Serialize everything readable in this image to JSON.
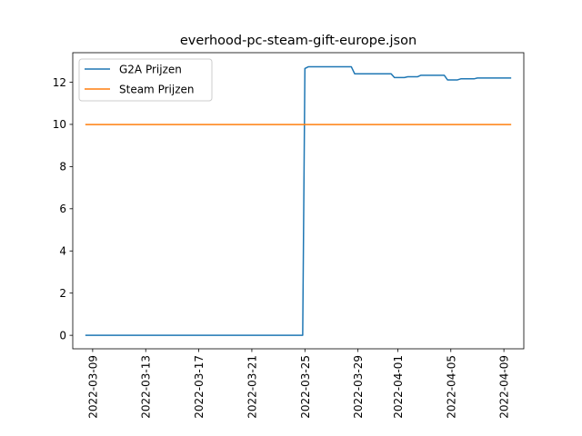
{
  "chart_data": {
    "type": "line",
    "title": "everhood-pc-steam-gift-europe.json",
    "xlabel": "",
    "ylabel": "",
    "x_type": "date",
    "xlim": [
      "2022-03-07T12:00",
      "2022-04-10T12:00"
    ],
    "ylim": [
      -0.64,
      13.4
    ],
    "yticks": [
      0,
      2,
      4,
      6,
      8,
      10,
      12
    ],
    "xticks": [
      "2022-03-09",
      "2022-03-13",
      "2022-03-17",
      "2022-03-21",
      "2022-03-25",
      "2022-03-29",
      "2022-04-01",
      "2022-04-05",
      "2022-04-09"
    ],
    "legend_position": "top-left",
    "grid": false,
    "series": [
      {
        "name": "G2A Prijzen",
        "color": "#1f77b4",
        "points": [
          [
            "2022-03-08T12:00",
            0.0
          ],
          [
            "2022-03-24T20:00",
            0.0
          ],
          [
            "2022-03-25T00:00",
            12.65
          ],
          [
            "2022-03-25T06:00",
            12.73
          ],
          [
            "2022-03-28T12:00",
            12.73
          ],
          [
            "2022-03-28T18:00",
            12.4
          ],
          [
            "2022-03-31T12:00",
            12.4
          ],
          [
            "2022-03-31T18:00",
            12.22
          ],
          [
            "2022-04-01T12:00",
            12.22
          ],
          [
            "2022-04-01T18:00",
            12.26
          ],
          [
            "2022-04-02T12:00",
            12.26
          ],
          [
            "2022-04-02T18:00",
            12.33
          ],
          [
            "2022-04-04T12:00",
            12.33
          ],
          [
            "2022-04-04T18:00",
            12.11
          ],
          [
            "2022-04-05T12:00",
            12.11
          ],
          [
            "2022-04-05T18:00",
            12.16
          ],
          [
            "2022-04-06T18:00",
            12.16
          ],
          [
            "2022-04-07T00:00",
            12.2
          ],
          [
            "2022-04-09T12:00",
            12.2
          ]
        ]
      },
      {
        "name": "Steam Prijzen",
        "color": "#ff7f0e",
        "points": [
          [
            "2022-03-08T12:00",
            9.99
          ],
          [
            "2022-04-09T12:00",
            9.99
          ]
        ]
      }
    ]
  }
}
